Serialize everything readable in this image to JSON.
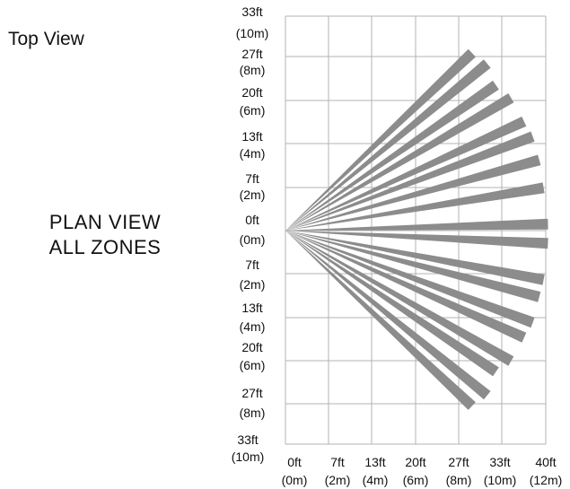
{
  "header": {
    "title": "Top View"
  },
  "caption": {
    "line1": "PLAN  VIEW",
    "line2": "ALL  ZONES"
  },
  "chart_data": {
    "type": "diagram",
    "colors": {
      "grid": "#b3b3b3",
      "beam": "#8c8c8c",
      "text": "#111111"
    },
    "y_axis": {
      "ticks": [
        {
          "ft": "33ft",
          "m": "(10m)"
        },
        {
          "ft": "27ft",
          "m": "(8m)"
        },
        {
          "ft": "20ft",
          "m": "(6m)"
        },
        {
          "ft": "13ft",
          "m": "(4m)"
        },
        {
          "ft": "7ft",
          "m": "(2m)"
        },
        {
          "ft": "0ft",
          "m": "(0m)"
        },
        {
          "ft": "7ft",
          "m": "(2m)"
        },
        {
          "ft": "13ft",
          "m": "(4m)"
        },
        {
          "ft": "20ft",
          "m": "(6m)"
        },
        {
          "ft": "27ft",
          "m": "(8m)"
        },
        {
          "ft": "33ft",
          "m": "(10m)"
        }
      ]
    },
    "x_axis": {
      "ticks": [
        {
          "ft": "0ft",
          "m": "(0m)"
        },
        {
          "ft": "7ft",
          "m": "(2m)"
        },
        {
          "ft": "13ft",
          "m": "(4m)"
        },
        {
          "ft": "20ft",
          "m": "(6m)"
        },
        {
          "ft": "27ft",
          "m": "(8m)"
        },
        {
          "ft": "33ft",
          "m": "(10m)"
        },
        {
          "ft": "40ft",
          "m": "(12m)"
        }
      ]
    },
    "beams": [
      {
        "x": 8.6,
        "y": 8.3
      },
      {
        "x": 9.3,
        "y": 7.8
      },
      {
        "x": 9.7,
        "y": 6.8
      },
      {
        "x": 10.4,
        "y": 6.2
      },
      {
        "x": 11.0,
        "y": 5.1
      },
      {
        "x": 11.4,
        "y": 4.4
      },
      {
        "x": 11.7,
        "y": 3.3
      },
      {
        "x": 11.9,
        "y": 2.0
      },
      {
        "x": 12.1,
        "y": 0.3
      },
      {
        "x": 12.1,
        "y": -0.6
      },
      {
        "x": 11.9,
        "y": -2.3
      },
      {
        "x": 11.7,
        "y": -3.1
      },
      {
        "x": 11.4,
        "y": -4.3
      },
      {
        "x": 11.0,
        "y": -5.0
      },
      {
        "x": 10.4,
        "y": -6.1
      },
      {
        "x": 9.7,
        "y": -6.6
      },
      {
        "x": 9.3,
        "y": -7.7
      },
      {
        "x": 8.6,
        "y": -8.2
      }
    ]
  }
}
